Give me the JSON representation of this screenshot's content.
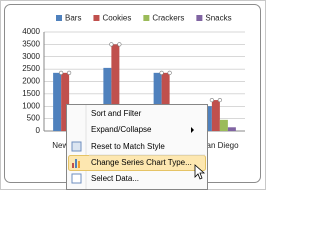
{
  "chart_data": {
    "type": "bar",
    "categories": [
      "New York",
      null,
      null,
      "San Diego"
    ],
    "series": [
      {
        "name": "Bars",
        "color": "#4f81bd",
        "values": [
          2350,
          2550,
          2350,
          1000
        ]
      },
      {
        "name": "Cookies",
        "color": "#c0504d",
        "values": [
          2350,
          3500,
          2350,
          1250
        ]
      },
      {
        "name": "Crackers",
        "color": "#9bbb59",
        "values": [
          500,
          600,
          550,
          450
        ]
      },
      {
        "name": "Snacks",
        "color": "#8064a2",
        "values": [
          200,
          250,
          300,
          150
        ]
      }
    ],
    "ylim": [
      0,
      4000
    ],
    "yticks": [
      0,
      500,
      1000,
      1500,
      2000,
      2500,
      3000,
      3500,
      4000
    ],
    "grid": true,
    "legend": "top"
  },
  "menu": {
    "items": [
      "Sort and Filter",
      "Expand/Collapse",
      "Reset to Match Style",
      "Change Series Chart Type...",
      "Select Data..."
    ]
  }
}
